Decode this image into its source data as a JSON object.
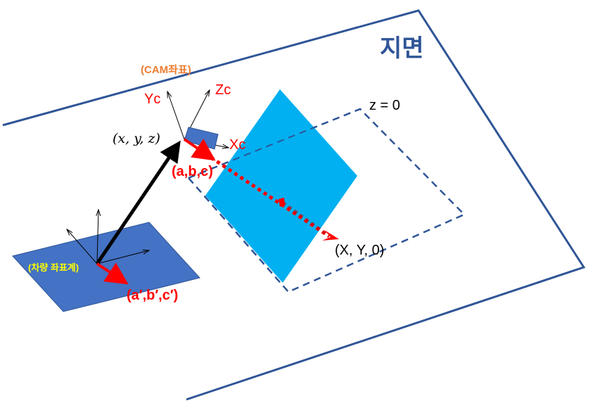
{
  "labels": {
    "ground": "지면",
    "cam_coord": "(CAM좌표)",
    "yc": "Yc",
    "zc": "Zc",
    "xc": "Xc",
    "cam_pos": "(x, y, z)",
    "cam_vec": "(a,b,c)",
    "z_plane": "z = 0",
    "ground_point": "(X, Y, 0)",
    "vehicle_coord": "(차량 좌표계)",
    "vehicle_vec": "(a′,b′,c′)"
  },
  "colors": {
    "ground_outline": "#2f5597",
    "vehicle_plane": "#4472c4",
    "image_plane": "#00b0f0",
    "red": "#ff0000",
    "orange": "#ed7d31",
    "yellow": "#ffff00",
    "black": "#000000"
  }
}
